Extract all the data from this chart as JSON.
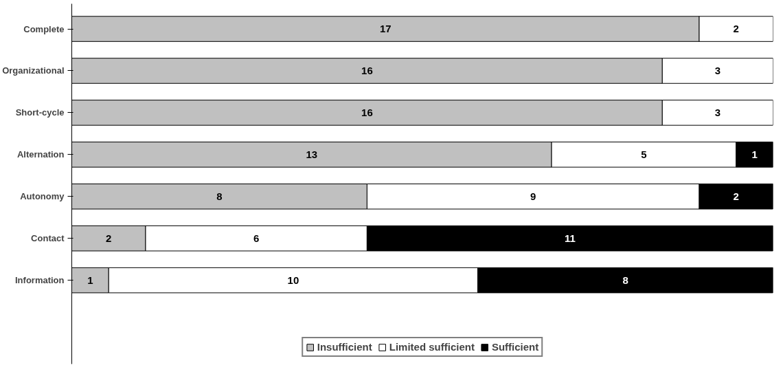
{
  "chart_data": {
    "type": "bar",
    "orientation": "horizontal",
    "stacked": true,
    "categories": [
      "Complete",
      "Organizational",
      "Short-cycle",
      "Alternation",
      "Autonomy",
      "Contact",
      "Information"
    ],
    "series": [
      {
        "name": "Insufficient",
        "color": "#c0c0c0",
        "values": [
          17,
          16,
          16,
          13,
          8,
          2,
          1
        ]
      },
      {
        "name": "Limited sufficient",
        "color": "#ffffff",
        "values": [
          2,
          3,
          3,
          5,
          9,
          6,
          10
        ]
      },
      {
        "name": "Sufficient",
        "color": "#000000",
        "values": [
          null,
          null,
          null,
          1,
          2,
          11,
          8
        ]
      }
    ],
    "xlim": [
      0,
      19
    ],
    "tick_labels": "y",
    "data_labels": true,
    "legend": "bottom",
    "grid": false
  }
}
